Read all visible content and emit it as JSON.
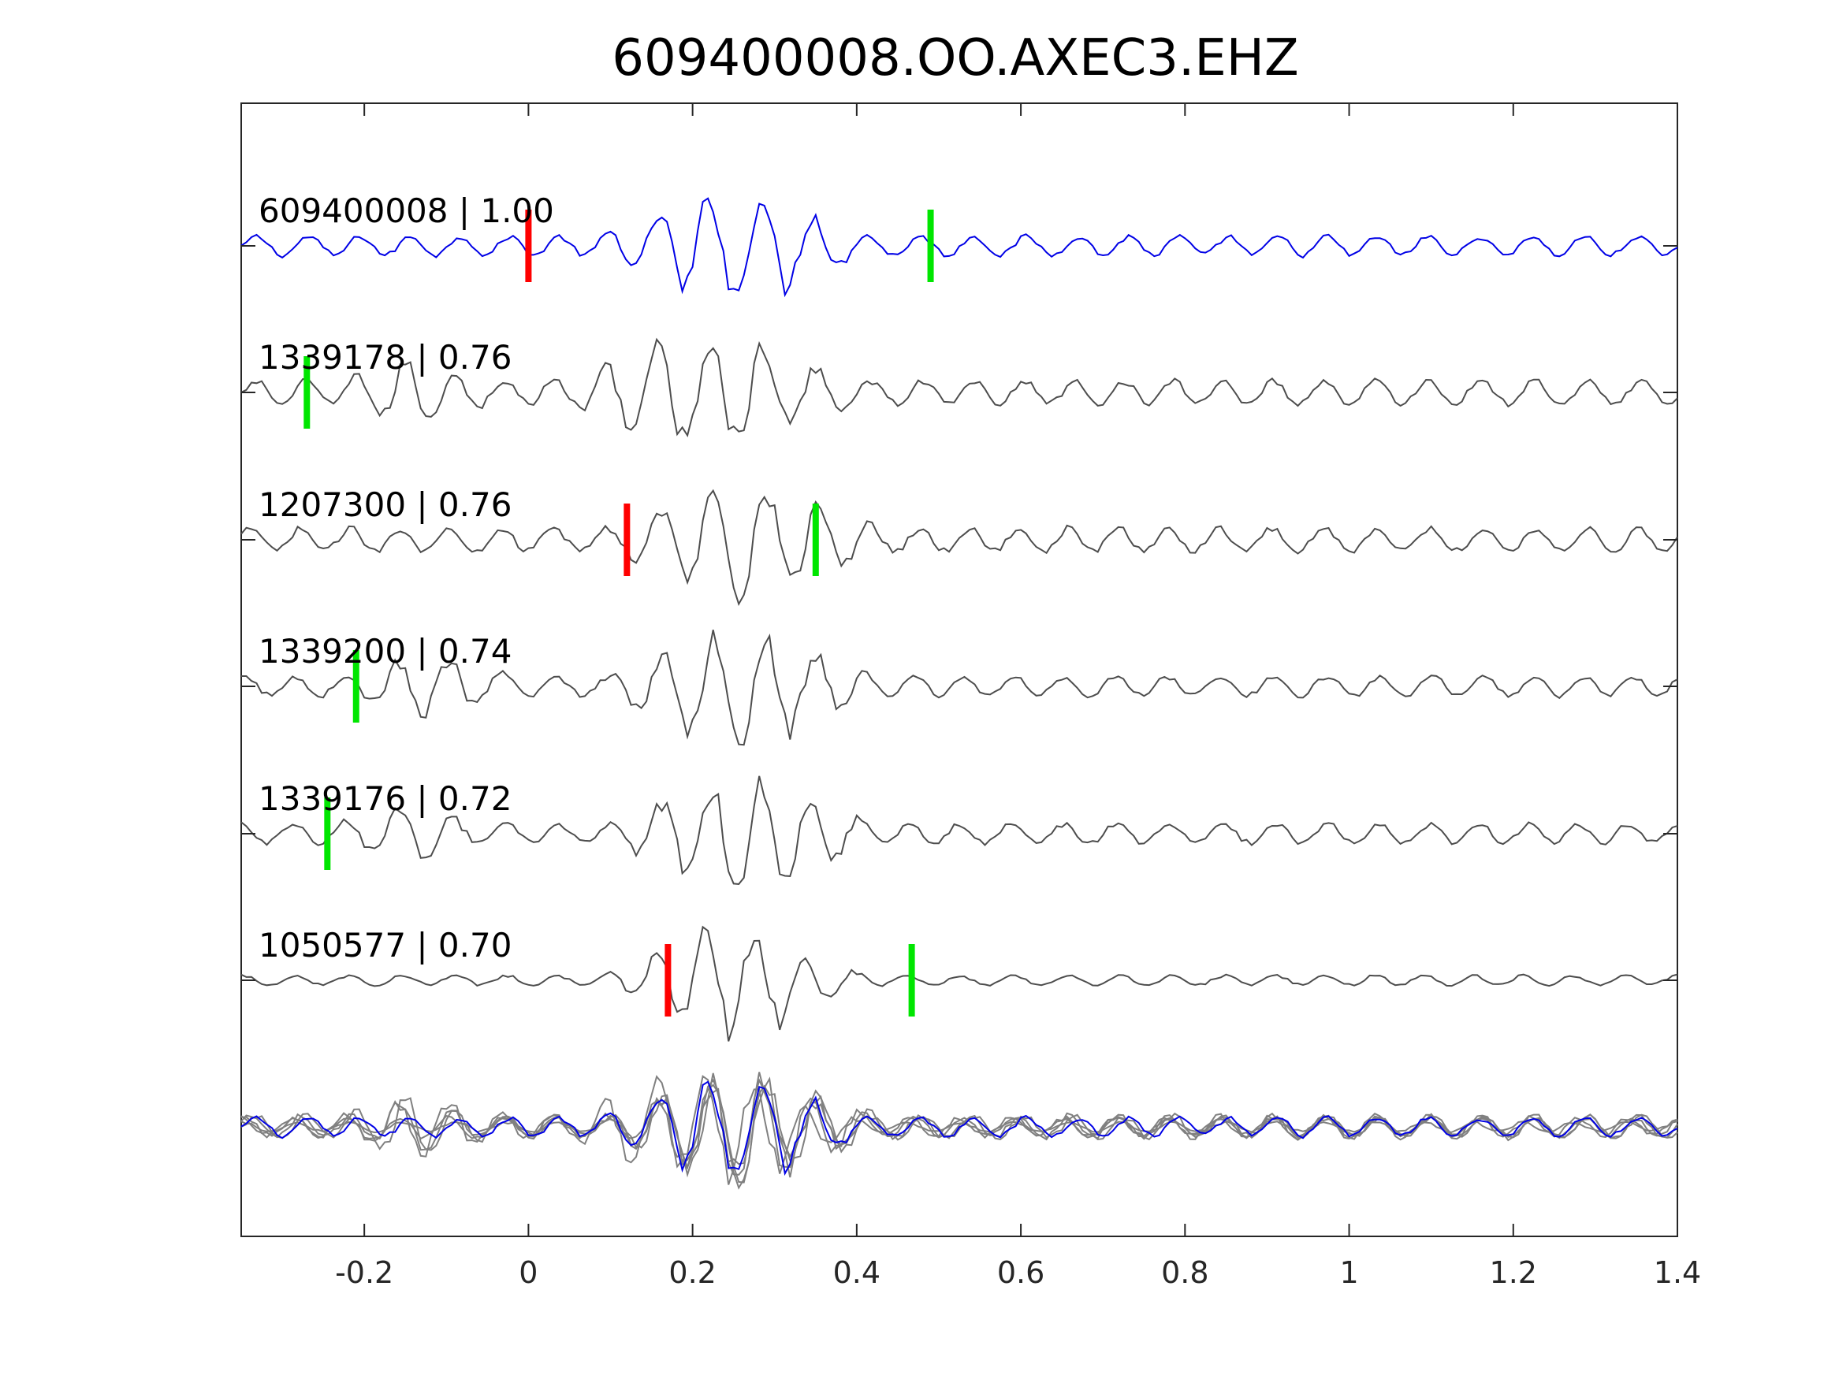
{
  "chart_data": {
    "type": "line",
    "title": "609400008.OO.AXEC3.EHZ",
    "xlabel": "",
    "ylabel": "",
    "xlim": [
      -0.35,
      1.4
    ],
    "xticks": [
      -0.2,
      0,
      0.2,
      0.4,
      0.6,
      0.8,
      1,
      1.2,
      1.4
    ],
    "xtick_labels": [
      "-0.2",
      "0",
      "0.2",
      "0.4",
      "0.6",
      "0.8",
      "1",
      "1.2",
      "1.4"
    ],
    "grid": false,
    "legend": "none",
    "sample_step": 0.00625,
    "colors": {
      "template": "#0000e6",
      "trace": "#4d4d4d",
      "overlay": "#808080",
      "p_pick": "#ff0000",
      "s_pick": "#00e600",
      "axes": "#262626"
    },
    "series": [
      {
        "label": "609400008 | 1.00",
        "station": "609400008",
        "correlation": 1.0,
        "color": "#0000e6",
        "p_pick": 0.0,
        "s_pick": 0.49
      },
      {
        "label": "1339178 | 0.76",
        "station": "1339178",
        "correlation": 0.76,
        "color": "#4d4d4d",
        "p_pick": null,
        "s_pick": -0.27
      },
      {
        "label": "1207300 | 0.76",
        "station": "1207300",
        "correlation": 0.76,
        "color": "#4d4d4d",
        "p_pick": 0.12,
        "s_pick": 0.35
      },
      {
        "label": "1339200 | 0.74",
        "station": "1339200",
        "correlation": 0.74,
        "color": "#4d4d4d",
        "p_pick": null,
        "s_pick": -0.21
      },
      {
        "label": "1339176 | 0.72",
        "station": "1339176",
        "correlation": 0.72,
        "color": "#4d4d4d",
        "p_pick": null,
        "s_pick": -0.245
      },
      {
        "label": "1050577 | 0.70",
        "station": "1050577",
        "correlation": 0.7,
        "color": "#4d4d4d",
        "p_pick": 0.17,
        "s_pick": 0.467
      }
    ],
    "overlay": {
      "description_visible": false,
      "includes_template": true
    }
  }
}
